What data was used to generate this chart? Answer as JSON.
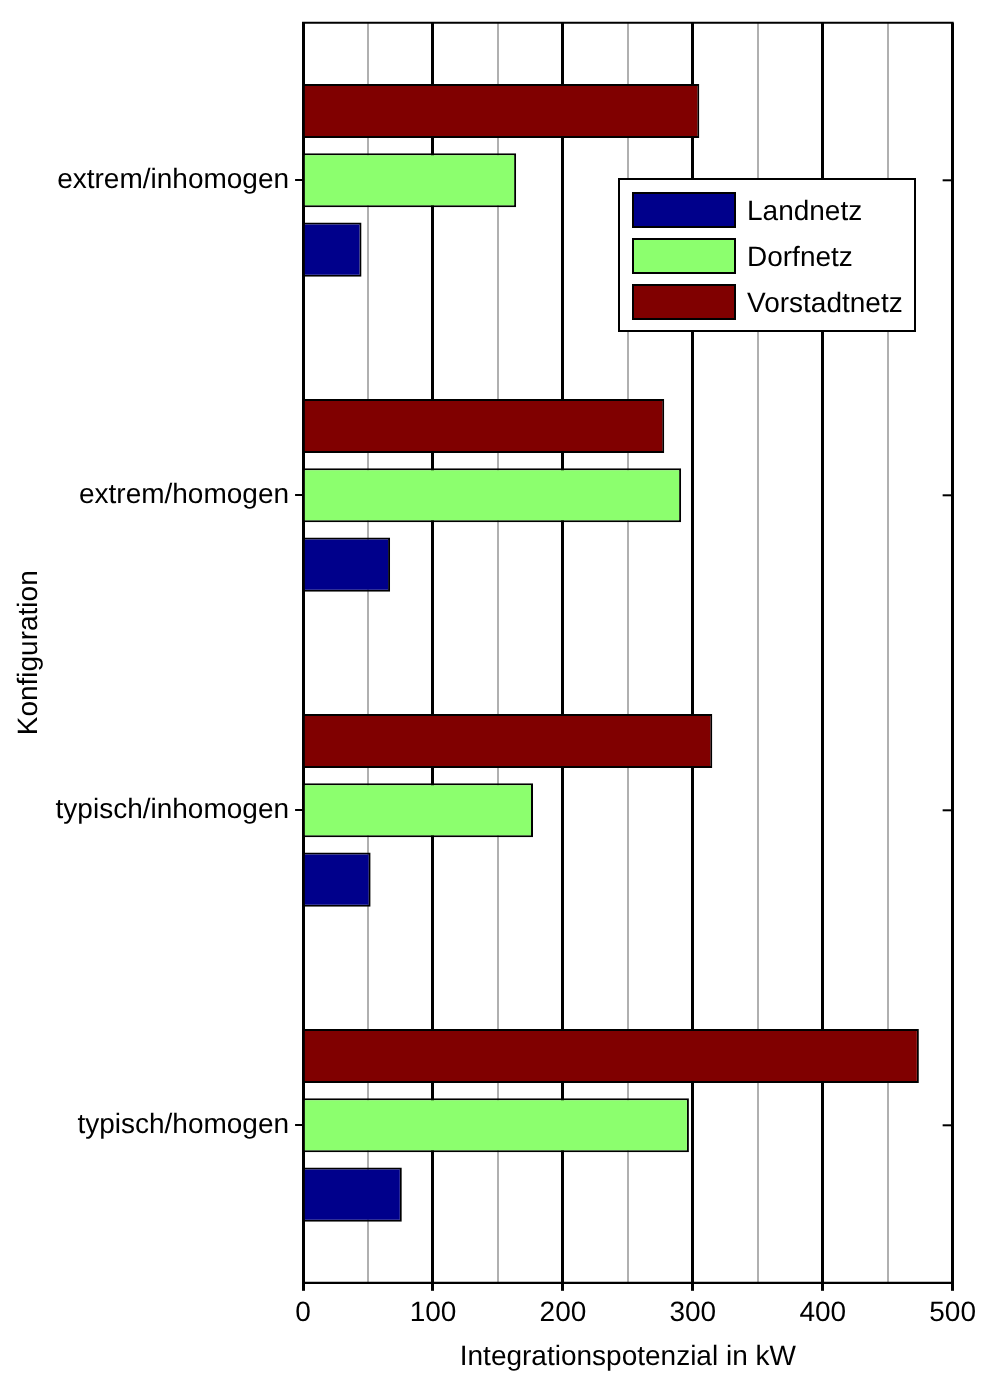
{
  "chart_data": {
    "type": "bar",
    "orientation": "horizontal",
    "xlabel": "Integrationspotenzial in kW",
    "ylabel": "Konfiguration",
    "categories": [
      "extrem/inhomogen",
      "extrem/homogen",
      "typisch/inhomogen",
      "typisch/homogen"
    ],
    "series": [
      {
        "name": "Landnetz",
        "color": "#00008b",
        "values": [
          45,
          67,
          52,
          76
        ]
      },
      {
        "name": "Dorfnetz",
        "color": "#8cff6e",
        "values": [
          164,
          291,
          177,
          297
        ]
      },
      {
        "name": "Vorstadtnetz",
        "color": "#800000",
        "values": [
          305,
          278,
          315,
          474
        ]
      }
    ],
    "xlim": [
      0,
      500
    ],
    "xticks": [
      0,
      {
        "value": 50,
        "label": null
      },
      100,
      {
        "value": 150,
        "label": null
      },
      200,
      {
        "value": 250,
        "label": null
      },
      300,
      {
        "value": 350,
        "label": null
      },
      400,
      {
        "value": 450,
        "label": null
      },
      500
    ],
    "grid": "x",
    "legend": "top right"
  }
}
